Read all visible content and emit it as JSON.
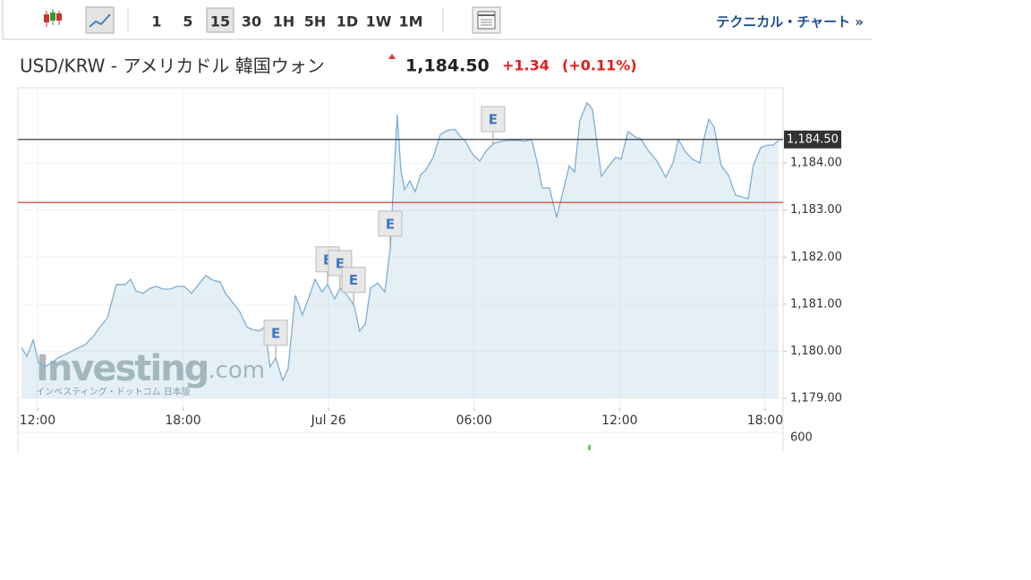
{
  "toolbar": {
    "intervals": [
      "1",
      "5",
      "15",
      "30",
      "1H",
      "5H",
      "1D",
      "1W",
      "1M"
    ],
    "selected_interval": "15",
    "technical": "テクニカル・チャート »"
  },
  "header": {
    "pair": "USD/KRW - アメリカドル 韓国ウォン",
    "price": "1,184.50",
    "change": "+1.34",
    "change_pct": "(+0.11%)"
  },
  "watermark": {
    "brand": "Investing",
    "suffix": ".com",
    "tagline": "インベスティング・ドットコム 日本版"
  },
  "chart_data": {
    "type": "area",
    "series": [
      {
        "color": "#7eaed4",
        "x": [
          -0.66,
          -0.44,
          -0.18,
          0.04,
          0.3,
          0.59,
          0.85,
          1.22,
          1.59,
          1.96,
          2.32,
          2.58,
          2.88,
          3.25,
          3.62,
          3.84,
          4.06,
          4.35,
          4.65,
          4.91,
          5.17,
          5.46,
          5.76,
          6.05,
          6.35,
          6.64,
          6.94,
          7.23,
          7.53,
          7.75,
          8.04,
          8.34,
          8.63,
          8.86,
          9.15,
          9.37,
          9.59,
          9.82,
          10.11,
          10.33,
          10.48,
          10.63,
          10.92,
          11.22,
          11.44,
          11.73,
          11.96,
          12.25,
          12.47,
          12.77,
          13.06,
          13.28,
          13.51,
          13.73,
          14.02,
          14.32,
          14.54,
          14.69,
          14.83,
          14.98,
          15.13,
          15.35,
          15.57,
          15.79,
          16.01,
          16.31,
          16.61,
          16.9,
          17.2,
          17.42,
          17.64,
          17.93,
          18.23,
          18.52,
          18.82,
          19.11,
          19.41,
          19.78,
          20.07,
          20.37,
          20.59,
          20.81,
          21.11,
          21.4,
          21.7,
          21.92,
          22.14,
          22.36,
          22.66,
          22.88,
          23.25,
          23.54,
          23.84,
          24.06,
          24.35,
          24.65,
          24.87,
          25.17,
          25.54,
          25.9,
          26.2,
          26.42,
          26.72,
          27.01,
          27.31,
          27.45,
          27.68,
          27.9,
          28.19,
          28.49,
          28.78,
          29.3,
          29.52,
          29.82,
          30.11,
          30.33,
          30.55
        ],
        "values": [
          1180.08,
          1179.89,
          1180.24,
          1179.76,
          1179.67,
          1179.76,
          1179.86,
          1179.95,
          1180.05,
          1180.14,
          1180.33,
          1180.52,
          1180.71,
          1181.42,
          1181.42,
          1181.53,
          1181.28,
          1181.23,
          1181.34,
          1181.38,
          1181.32,
          1181.32,
          1181.38,
          1181.38,
          1181.23,
          1181.42,
          1181.61,
          1181.51,
          1181.47,
          1181.23,
          1181.04,
          1180.84,
          1180.52,
          1180.46,
          1180.43,
          1180.52,
          1179.67,
          1179.86,
          1179.38,
          1179.63,
          1180.43,
          1181.19,
          1180.77,
          1181.19,
          1181.53,
          1181.26,
          1181.42,
          1181.11,
          1181.34,
          1181.19,
          1180.96,
          1180.43,
          1180.58,
          1181.34,
          1181.45,
          1181.26,
          1182.18,
          1183.66,
          1185.03,
          1183.85,
          1183.43,
          1183.62,
          1183.39,
          1183.75,
          1183.85,
          1184.12,
          1184.61,
          1184.69,
          1184.72,
          1184.57,
          1184.46,
          1184.19,
          1184.04,
          1184.27,
          1184.42,
          1184.46,
          1184.48,
          1184.48,
          1184.46,
          1184.5,
          1184.04,
          1183.47,
          1183.47,
          1182.84,
          1183.47,
          1183.94,
          1183.81,
          1184.9,
          1185.28,
          1185.14,
          1183.72,
          1183.93,
          1184.12,
          1184.08,
          1184.67,
          1184.55,
          1184.52,
          1184.27,
          1184.04,
          1183.7,
          1184.0,
          1184.5,
          1184.23,
          1184.08,
          1184.0,
          1184.46,
          1184.93,
          1184.76,
          1183.94,
          1183.74,
          1183.32,
          1183.24,
          1183.96,
          1184.33,
          1184.38,
          1184.38,
          1184.48
        ]
      }
    ],
    "xlim": [
      -0.81,
      30.74
    ],
    "xticks": [
      {
        "value": 0,
        "label": "12:00"
      },
      {
        "value": 6,
        "label": "18:00"
      },
      {
        "value": 12,
        "label": "Jul 26"
      },
      {
        "value": 18,
        "label": "06:00"
      },
      {
        "value": 24,
        "label": "12:00"
      },
      {
        "value": 30,
        "label": "18:00"
      }
    ],
    "ylim": [
      1179,
      1185.6
    ],
    "yticks": [
      {
        "value": 1179,
        "label": "1,179.00"
      },
      {
        "value": 1180,
        "label": "1,180.00"
      },
      {
        "value": 1181,
        "label": "1,181.00"
      },
      {
        "value": 1182,
        "label": "1,182.00"
      },
      {
        "value": 1183,
        "label": "1,183.00"
      },
      {
        "value": 1184,
        "label": "1,184.00"
      }
    ],
    "current_price": {
      "value": 1184.5,
      "label": "1,184.50",
      "color": "#222222"
    },
    "previous_close": {
      "value": 1183.16,
      "color": "#d9403a"
    },
    "events": [
      {
        "x": 9.82,
        "label": "E"
      },
      {
        "x": 11.96,
        "label": "E"
      },
      {
        "x": 12.47,
        "label": "E"
      },
      {
        "x": 13.03,
        "label": "E"
      },
      {
        "x": 14.54,
        "label": "E"
      },
      {
        "x": 18.78,
        "label": "E"
      }
    ],
    "volume_ticks": [
      600
    ],
    "grid": true
  }
}
